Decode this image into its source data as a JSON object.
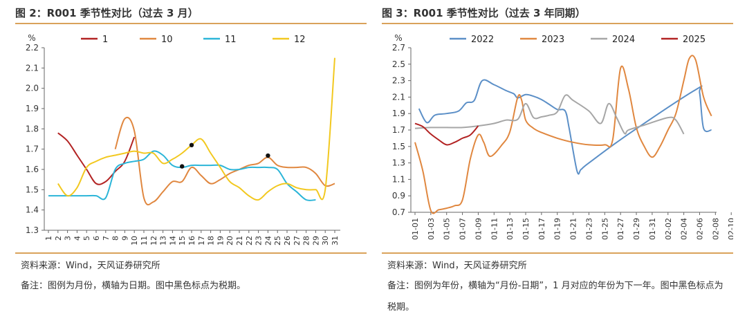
{
  "left": {
    "figure_title": "图 2：R001 季节性对比（过去 3 月）",
    "source": "资料来源：Wind，天风证券研究所",
    "note": "备注：图例为月份，横轴为日期。图中黑色标点为税期。"
  },
  "right": {
    "figure_title": "图 3：R001 季节性对比（过去 3 年同期）",
    "source": "资料来源：Wind，天风证券研究所",
    "note": "备注：图例为年份，横轴为“月份-日期”，1 月对应的年份为下一年。图中黑色标点为税期。"
  },
  "colors": {
    "dark_red": "#b22222",
    "orange": "#e0873f",
    "cyan": "#2bb5d8",
    "yellow": "#f2c81f",
    "steel_blue": "#5b8fc7",
    "gray": "#a6a6a6",
    "rule": "#d9a25a",
    "tax_dot": "#111111"
  },
  "chart_data": [
    {
      "type": "line",
      "ylabel": "%",
      "ylim": [
        1.3,
        2.2
      ],
      "yticks": [
        "1.3",
        "1.4",
        "1.5",
        "1.6",
        "1.7",
        "1.8",
        "1.9",
        "2.0",
        "2.1",
        "2.2"
      ],
      "x": [
        1,
        2,
        3,
        4,
        5,
        6,
        7,
        8,
        9,
        10,
        11,
        12,
        13,
        14,
        15,
        16,
        17,
        18,
        19,
        20,
        21,
        22,
        23,
        24,
        25,
        26,
        27,
        28,
        29,
        30,
        31
      ],
      "legend_position": "top",
      "series": [
        {
          "name": "1",
          "color": "#b22222",
          "points": [
            [
              2,
              1.78
            ],
            [
              3,
              1.74
            ],
            [
              4,
              1.67
            ],
            [
              5,
              1.6
            ],
            [
              6,
              1.53
            ],
            [
              7,
              1.54
            ],
            [
              8,
              1.59
            ],
            [
              9,
              1.64
            ],
            [
              10,
              1.76
            ]
          ]
        },
        {
          "name": "10",
          "color": "#e0873f",
          "points": [
            [
              8,
              1.7
            ],
            [
              9,
              1.85
            ],
            [
              10,
              1.79
            ],
            [
              11,
              1.46
            ],
            [
              12,
              1.44
            ],
            [
              13,
              1.49
            ],
            [
              14,
              1.54
            ],
            [
              15,
              1.54
            ],
            [
              16,
              1.61
            ],
            [
              17,
              1.57
            ],
            [
              18,
              1.53
            ],
            [
              19,
              1.55
            ],
            [
              20,
              1.58
            ],
            [
              21,
              1.6
            ],
            [
              22,
              1.62
            ],
            [
              23,
              1.63
            ],
            [
              24,
              1.66
            ],
            [
              25,
              1.62
            ],
            [
              26,
              1.61
            ],
            [
              27,
              1.61
            ],
            [
              28,
              1.61
            ],
            [
              29,
              1.58
            ],
            [
              30,
              1.52
            ],
            [
              31,
              1.53
            ]
          ]
        },
        {
          "name": "11",
          "color": "#2bb5d8",
          "points": [
            [
              1,
              1.47
            ],
            [
              2,
              1.47
            ],
            [
              3,
              1.47
            ],
            [
              4,
              1.47
            ],
            [
              5,
              1.47
            ],
            [
              6,
              1.47
            ],
            [
              7,
              1.46
            ],
            [
              8,
              1.6
            ],
            [
              9,
              1.63
            ],
            [
              10,
              1.64
            ],
            [
              11,
              1.65
            ],
            [
              12,
              1.69
            ],
            [
              13,
              1.67
            ],
            [
              14,
              1.62
            ],
            [
              15,
              1.61
            ],
            [
              16,
              1.62
            ],
            [
              17,
              1.62
            ],
            [
              18,
              1.62
            ],
            [
              19,
              1.62
            ],
            [
              20,
              1.6
            ],
            [
              21,
              1.6
            ],
            [
              22,
              1.61
            ],
            [
              23,
              1.61
            ],
            [
              24,
              1.61
            ],
            [
              25,
              1.6
            ],
            [
              26,
              1.53
            ],
            [
              27,
              1.49
            ],
            [
              28,
              1.45
            ],
            [
              29,
              1.45
            ]
          ]
        },
        {
          "name": "12",
          "color": "#f2c81f",
          "points": [
            [
              2,
              1.53
            ],
            [
              3,
              1.47
            ],
            [
              4,
              1.51
            ],
            [
              5,
              1.61
            ],
            [
              6,
              1.64
            ],
            [
              7,
              1.66
            ],
            [
              8,
              1.67
            ],
            [
              9,
              1.68
            ],
            [
              10,
              1.69
            ],
            [
              11,
              1.68
            ],
            [
              12,
              1.68
            ],
            [
              13,
              1.63
            ],
            [
              14,
              1.65
            ],
            [
              15,
              1.68
            ],
            [
              16,
              1.72
            ],
            [
              17,
              1.75
            ],
            [
              18,
              1.68
            ],
            [
              19,
              1.61
            ],
            [
              20,
              1.54
            ],
            [
              21,
              1.51
            ],
            [
              22,
              1.47
            ],
            [
              23,
              1.45
            ],
            [
              24,
              1.49
            ],
            [
              25,
              1.52
            ],
            [
              26,
              1.53
            ],
            [
              27,
              1.51
            ],
            [
              28,
              1.5
            ],
            [
              29,
              1.5
            ],
            [
              30,
              1.5
            ],
            [
              31,
              2.15
            ]
          ]
        }
      ],
      "tax_points": [
        [
          15,
          1.615
        ],
        [
          16,
          1.72
        ],
        [
          24,
          1.668
        ]
      ]
    },
    {
      "type": "line",
      "ylabel": "%",
      "ylim": [
        0.7,
        2.7
      ],
      "yticks": [
        "0.7",
        "0.9",
        "1.1",
        "1.3",
        "1.5",
        "1.7",
        "1.9",
        "2.1",
        "2.3",
        "2.5",
        "2.7"
      ],
      "categories": [
        "01-01",
        "01-03",
        "01-05",
        "01-07",
        "01-09",
        "01-11",
        "01-13",
        "01-15",
        "01-17",
        "01-19",
        "01-21",
        "01-23",
        "01-25",
        "01-27",
        "01-29",
        "01-31",
        "02-02",
        "02-04",
        "02-06",
        "02-08",
        "02-10"
      ],
      "legend_position": "top",
      "series": [
        {
          "name": "2022",
          "color": "#5b8fc7",
          "points": [
            [
              1.5,
              1.96
            ],
            [
              2.5,
              1.79
            ],
            [
              3.5,
              1.88
            ],
            [
              5,
              1.9
            ],
            [
              6.5,
              1.93
            ],
            [
              7.5,
              2.03
            ],
            [
              8.5,
              2.06
            ],
            [
              9.5,
              2.3
            ],
            [
              11,
              2.25
            ],
            [
              12.5,
              2.18
            ],
            [
              13.5,
              2.14
            ],
            [
              14,
              2.09
            ],
            [
              15,
              2.13
            ],
            [
              16,
              2.11
            ],
            [
              17,
              2.07
            ],
            [
              18,
              2.01
            ],
            [
              19,
              1.95
            ],
            [
              20,
              1.93
            ],
            [
              20.5,
              1.72
            ],
            [
              21.5,
              1.2
            ],
            [
              22,
              1.22
            ],
            [
              23,
              1.3
            ],
            [
              28,
              1.65
            ],
            [
              36.5,
              2.19
            ],
            [
              37,
              2.15
            ],
            [
              37.5,
              1.72
            ],
            [
              38.5,
              1.7
            ]
          ]
        },
        {
          "name": "2023",
          "color": "#e0873f",
          "points": [
            [
              1,
              1.55
            ],
            [
              2,
              1.2
            ],
            [
              3,
              0.72
            ],
            [
              4,
              0.73
            ],
            [
              5,
              0.75
            ],
            [
              6,
              0.78
            ],
            [
              7,
              0.85
            ],
            [
              8,
              1.35
            ],
            [
              9,
              1.64
            ],
            [
              9.7,
              1.55
            ],
            [
              10.5,
              1.38
            ],
            [
              12,
              1.52
            ],
            [
              13,
              1.68
            ],
            [
              14,
              2.1
            ],
            [
              14.5,
              2.06
            ],
            [
              15,
              1.82
            ],
            [
              16,
              1.72
            ],
            [
              17,
              1.67
            ],
            [
              19,
              1.6
            ],
            [
              21,
              1.55
            ],
            [
              23,
              1.52
            ],
            [
              25,
              1.52
            ],
            [
              26,
              1.58
            ],
            [
              27,
              2.45
            ],
            [
              28,
              2.2
            ],
            [
              29,
              1.73
            ],
            [
              30,
              1.5
            ],
            [
              31,
              1.37
            ],
            [
              32,
              1.5
            ],
            [
              33,
              1.7
            ],
            [
              34,
              1.9
            ],
            [
              35,
              2.3
            ],
            [
              35.7,
              2.57
            ],
            [
              36.5,
              2.55
            ],
            [
              37.5,
              2.1
            ],
            [
              38.5,
              1.87
            ]
          ]
        },
        {
          "name": "2024",
          "color": "#a6a6a6",
          "points": [
            [
              1,
              1.72
            ],
            [
              3,
              1.73
            ],
            [
              5,
              1.73
            ],
            [
              7,
              1.73
            ],
            [
              9,
              1.75
            ],
            [
              11,
              1.78
            ],
            [
              12.5,
              1.82
            ],
            [
              14,
              1.83
            ],
            [
              15,
              2.02
            ],
            [
              16,
              1.85
            ],
            [
              17,
              1.86
            ],
            [
              18,
              1.88
            ],
            [
              19,
              1.92
            ],
            [
              20,
              2.12
            ],
            [
              21,
              2.06
            ],
            [
              23,
              1.93
            ],
            [
              24.5,
              1.78
            ],
            [
              25.5,
              2.02
            ],
            [
              26.5,
              1.85
            ],
            [
              27.5,
              1.66
            ],
            [
              28,
              1.7
            ],
            [
              30,
              1.76
            ],
            [
              33,
              1.85
            ],
            [
              34,
              1.82
            ],
            [
              35,
              1.65
            ]
          ]
        },
        {
          "name": "2025",
          "color": "#b22222",
          "points": [
            [
              1,
              1.78
            ],
            [
              2,
              1.74
            ],
            [
              3,
              1.65
            ],
            [
              4,
              1.58
            ],
            [
              5,
              1.52
            ],
            [
              6,
              1.55
            ],
            [
              7,
              1.6
            ],
            [
              8,
              1.64
            ],
            [
              9,
              1.75
            ]
          ]
        }
      ]
    }
  ]
}
